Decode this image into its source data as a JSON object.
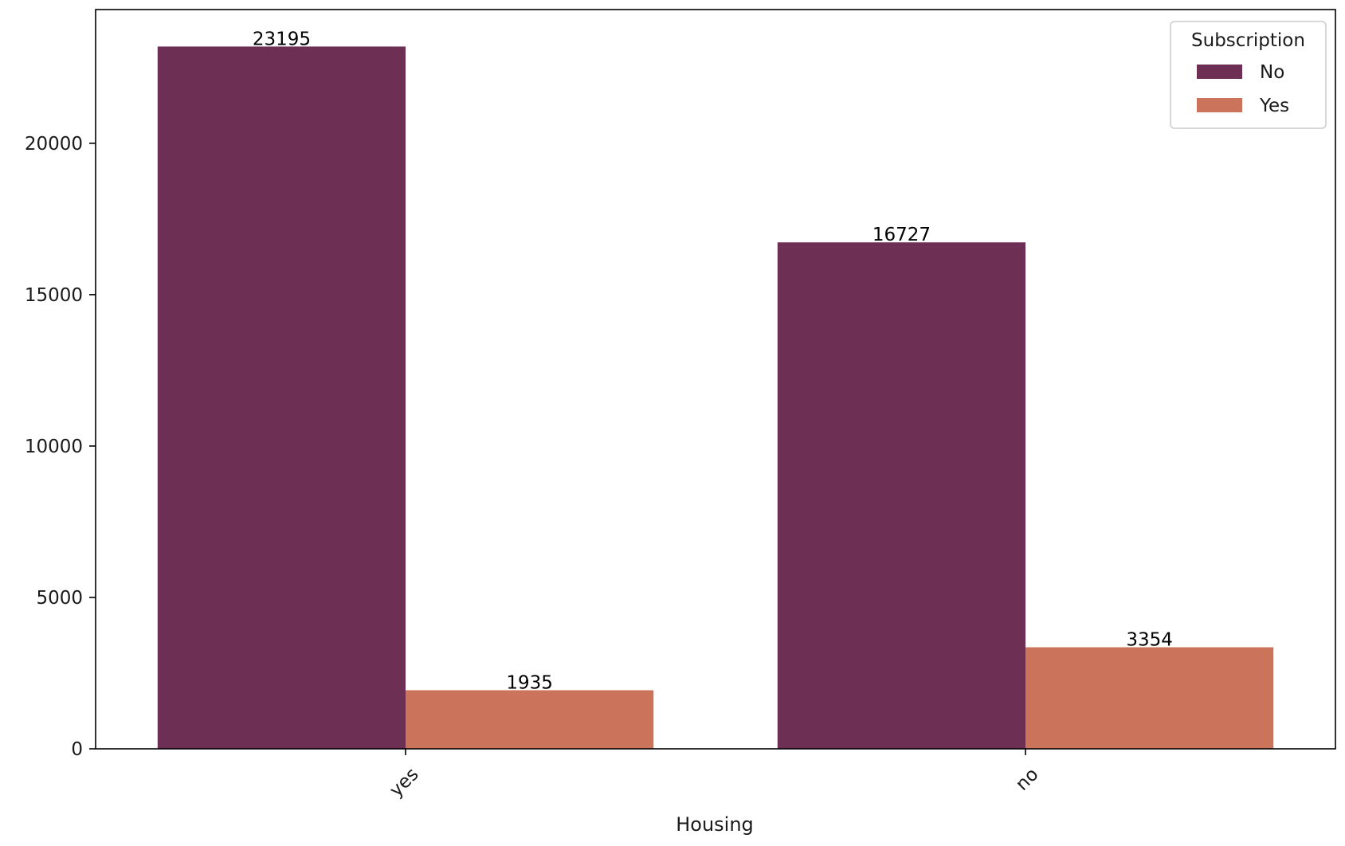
{
  "chart_data": {
    "type": "bar",
    "title": "",
    "xlabel": "Housing",
    "ylabel": "",
    "categories": [
      "yes",
      "no"
    ],
    "series": [
      {
        "name": "No",
        "values": [
          23195,
          16727
        ],
        "color": "#6e2f55"
      },
      {
        "name": "Yes",
        "values": [
          1935,
          3354
        ],
        "color": "#cc735c"
      }
    ],
    "ylim": [
      0,
      24416
    ],
    "yticks": [
      0,
      5000,
      10000,
      15000,
      20000
    ],
    "grid": false,
    "legend": {
      "title": "Subscription",
      "placement": "top-right"
    }
  }
}
